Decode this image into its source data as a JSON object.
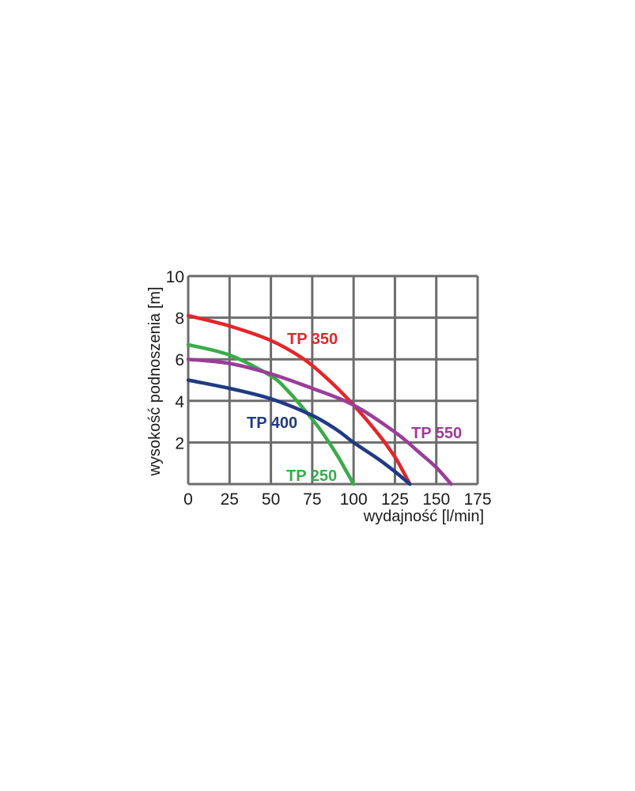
{
  "chart_data": {
    "type": "line",
    "title": "",
    "xlabel": "wydajność  [l/min]",
    "ylabel": "wysokość podnoszenia [m]",
    "xlim": [
      0,
      175
    ],
    "ylim": [
      0,
      10
    ],
    "x_ticks": [
      0,
      25,
      50,
      75,
      100,
      125,
      150,
      175
    ],
    "y_ticks": [
      2,
      4,
      6,
      8,
      10
    ],
    "grid": true,
    "legend": "inline labels",
    "series": [
      {
        "name": "TP 350",
        "color": "#e3262b",
        "x": [
          0,
          25,
          50,
          70,
          85,
          100,
          115,
          125,
          130,
          134
        ],
        "y": [
          8.1,
          7.6,
          6.9,
          6.0,
          5.0,
          3.8,
          2.4,
          1.3,
          0.6,
          0
        ]
      },
      {
        "name": "TP 250",
        "color": "#3aab4a",
        "x": [
          0,
          25,
          50,
          60,
          70,
          80,
          90,
          95,
          100
        ],
        "y": [
          6.7,
          6.2,
          5.2,
          4.5,
          3.6,
          2.6,
          1.4,
          0.7,
          0
        ]
      },
      {
        "name": "TP 550",
        "color": "#9a3d98",
        "x": [
          0,
          25,
          50,
          75,
          100,
          125,
          140,
          150,
          159
        ],
        "y": [
          6.0,
          5.8,
          5.3,
          4.6,
          3.8,
          2.5,
          1.5,
          0.8,
          0
        ]
      },
      {
        "name": "TP 400",
        "color": "#203a84",
        "x": [
          0,
          25,
          50,
          75,
          90,
          100,
          115,
          125,
          134
        ],
        "y": [
          5.0,
          4.6,
          4.1,
          3.3,
          2.6,
          2.0,
          1.2,
          0.6,
          0
        ]
      }
    ]
  }
}
